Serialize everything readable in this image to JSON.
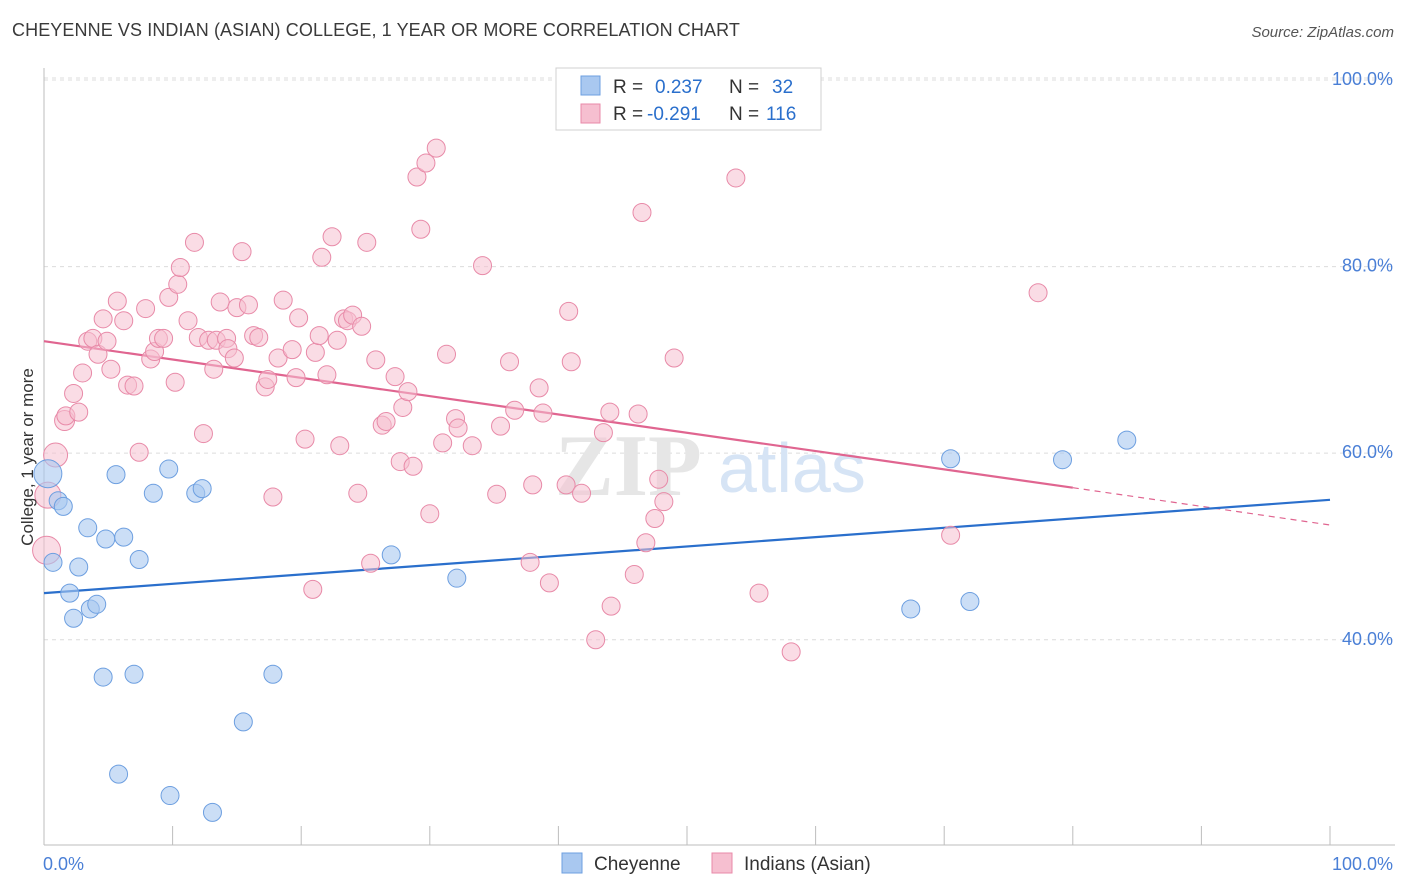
{
  "title": "CHEYENNE VS INDIAN (ASIAN) COLLEGE, 1 YEAR OR MORE CORRELATION CHART",
  "source": "Source: ZipAtlas.com",
  "watermark": {
    "zip": "ZIP",
    "atlas": "atlas"
  },
  "colors": {
    "cheyenne_fill": "#a9c8f0",
    "cheyenne_stroke": "#6d9fe0",
    "cheyenne_line": "#2a6fcc",
    "indian_fill": "#f6bfd0",
    "indian_stroke": "#e88aa8",
    "indian_line": "#e06590",
    "tick_text": "#4a7fd6",
    "value_text": "#2a6fcc"
  },
  "legend": {
    "row1": {
      "r_label": "R =",
      "r_value": "0.237",
      "n_label": "N =",
      "n_value": "32"
    },
    "row2": {
      "r_label": "R =",
      "r_value": "-0.291",
      "n_label": "N =",
      "n_value": "116"
    }
  },
  "chart_data": {
    "type": "scatter",
    "title": "CHEYENNE VS INDIAN (ASIAN) COLLEGE, 1 YEAR OR MORE CORRELATION CHART",
    "xlabel": "",
    "ylabel": "College, 1 year or more",
    "xlim": [
      0,
      100
    ],
    "ylim": [
      18,
      100
    ],
    "x_tick_labels": [
      "0.0%",
      "100.0%"
    ],
    "y_ticks": [
      40,
      60,
      80,
      100
    ],
    "y_tick_labels": [
      "40.0%",
      "60.0%",
      "80.0%",
      "100.0%"
    ],
    "grid": true,
    "legend_position": "top-center",
    "series": [
      {
        "name": "Cheyenne",
        "r": 0.237,
        "n": 32,
        "trend": {
          "x": [
            0,
            100
          ],
          "y": [
            45.0,
            55.0
          ]
        },
        "points": [
          [
            0.3,
            57.8,
            14
          ],
          [
            0.7,
            48.3,
            9
          ],
          [
            1.1,
            54.9,
            9
          ],
          [
            1.5,
            54.3,
            9
          ],
          [
            2.0,
            45.0,
            9
          ],
          [
            2.3,
            42.3,
            9
          ],
          [
            2.7,
            47.8,
            9
          ],
          [
            3.4,
            52.0,
            9
          ],
          [
            3.6,
            43.3,
            9
          ],
          [
            4.1,
            43.8,
            9
          ],
          [
            4.6,
            36.0,
            9
          ],
          [
            4.8,
            50.8,
            9
          ],
          [
            5.6,
            57.7,
            9
          ],
          [
            5.8,
            25.6,
            9
          ],
          [
            6.2,
            51.0,
            9
          ],
          [
            7.0,
            36.3,
            9
          ],
          [
            7.4,
            48.6,
            9
          ],
          [
            8.5,
            55.7,
            9
          ],
          [
            9.7,
            58.3,
            9
          ],
          [
            9.8,
            23.3,
            9
          ],
          [
            11.8,
            55.7,
            9
          ],
          [
            12.3,
            56.2,
            9
          ],
          [
            13.1,
            21.5,
            9
          ],
          [
            15.5,
            31.2,
            9
          ],
          [
            17.8,
            36.3,
            9
          ],
          [
            27.0,
            49.1,
            9
          ],
          [
            32.1,
            46.6,
            9
          ],
          [
            67.4,
            43.3,
            9
          ],
          [
            70.5,
            59.4,
            9
          ],
          [
            72.0,
            44.1,
            9
          ],
          [
            79.2,
            59.3,
            9
          ],
          [
            84.2,
            61.4,
            9
          ]
        ]
      },
      {
        "name": "Indians (Asian)",
        "r": -0.291,
        "n": 116,
        "trend": {
          "x": [
            0,
            80
          ],
          "y": [
            72.0,
            56.3
          ]
        },
        "trend_dashed": {
          "x": [
            80,
            100
          ],
          "y": [
            56.3,
            52.3
          ]
        },
        "points": [
          [
            0.2,
            49.6,
            14
          ],
          [
            0.3,
            55.5,
            13
          ],
          [
            0.9,
            59.8,
            12
          ],
          [
            1.6,
            63.5,
            10
          ],
          [
            1.7,
            64.0,
            9
          ],
          [
            2.3,
            66.4,
            9
          ],
          [
            2.7,
            64.4,
            9
          ],
          [
            3.0,
            68.6,
            9
          ],
          [
            3.4,
            72.0,
            9
          ],
          [
            3.8,
            72.3,
            9
          ],
          [
            4.2,
            70.6,
            9
          ],
          [
            4.6,
            74.4,
            9
          ],
          [
            4.9,
            72.0,
            9
          ],
          [
            5.2,
            69.0,
            9
          ],
          [
            5.7,
            76.3,
            9
          ],
          [
            6.2,
            74.2,
            9
          ],
          [
            6.5,
            67.3,
            9
          ],
          [
            7.0,
            67.2,
            9
          ],
          [
            7.4,
            60.1,
            9
          ],
          [
            7.9,
            75.5,
            9
          ],
          [
            8.3,
            70.1,
            9
          ],
          [
            8.6,
            70.9,
            9
          ],
          [
            8.9,
            72.3,
            9
          ],
          [
            9.3,
            72.3,
            9
          ],
          [
            9.7,
            76.7,
            9
          ],
          [
            10.2,
            67.6,
            9
          ],
          [
            10.4,
            78.1,
            9
          ],
          [
            10.6,
            79.9,
            9
          ],
          [
            11.2,
            74.2,
            9
          ],
          [
            11.7,
            82.6,
            9
          ],
          [
            12.0,
            72.4,
            9
          ],
          [
            12.4,
            62.1,
            9
          ],
          [
            12.8,
            72.1,
            9
          ],
          [
            13.2,
            69.0,
            9
          ],
          [
            13.4,
            72.1,
            9
          ],
          [
            13.7,
            76.2,
            9
          ],
          [
            14.2,
            72.3,
            9
          ],
          [
            14.3,
            71.2,
            9
          ],
          [
            14.8,
            70.2,
            9
          ],
          [
            15.0,
            75.6,
            9
          ],
          [
            15.4,
            81.6,
            9
          ],
          [
            15.9,
            75.9,
            9
          ],
          [
            16.3,
            72.6,
            9
          ],
          [
            16.7,
            72.4,
            9
          ],
          [
            17.2,
            67.1,
            9
          ],
          [
            17.4,
            67.9,
            9
          ],
          [
            17.8,
            55.3,
            9
          ],
          [
            18.2,
            70.2,
            9
          ],
          [
            18.6,
            76.4,
            9
          ],
          [
            19.3,
            71.1,
            9
          ],
          [
            19.6,
            68.1,
            9
          ],
          [
            19.8,
            74.5,
            9
          ],
          [
            20.3,
            61.5,
            9
          ],
          [
            20.9,
            45.4,
            9
          ],
          [
            21.1,
            70.8,
            9
          ],
          [
            21.4,
            72.6,
            9
          ],
          [
            21.6,
            81.0,
            9
          ],
          [
            22.0,
            68.4,
            9
          ],
          [
            22.4,
            83.2,
            9
          ],
          [
            22.8,
            72.1,
            9
          ],
          [
            23.0,
            60.8,
            9
          ],
          [
            23.3,
            74.4,
            9
          ],
          [
            23.6,
            74.2,
            9
          ],
          [
            24.0,
            74.8,
            9
          ],
          [
            24.4,
            55.7,
            9
          ],
          [
            24.7,
            73.6,
            9
          ],
          [
            25.1,
            82.6,
            9
          ],
          [
            25.4,
            48.2,
            9
          ],
          [
            25.8,
            70.0,
            9
          ],
          [
            26.3,
            63.0,
            9
          ],
          [
            26.6,
            63.4,
            9
          ],
          [
            27.3,
            68.2,
            9
          ],
          [
            27.7,
            59.1,
            9
          ],
          [
            27.9,
            64.9,
            9
          ],
          [
            28.3,
            66.6,
            9
          ],
          [
            28.7,
            58.6,
            9
          ],
          [
            29.0,
            89.6,
            9
          ],
          [
            29.3,
            84.0,
            9
          ],
          [
            29.7,
            91.1,
            9
          ],
          [
            30.0,
            53.5,
            9
          ],
          [
            30.5,
            92.7,
            9
          ],
          [
            31.0,
            61.1,
            9
          ],
          [
            31.3,
            70.6,
            9
          ],
          [
            32.0,
            63.7,
            9
          ],
          [
            32.2,
            62.7,
            9
          ],
          [
            33.3,
            60.8,
            9
          ],
          [
            34.1,
            80.1,
            9
          ],
          [
            35.2,
            55.6,
            9
          ],
          [
            35.5,
            62.9,
            9
          ],
          [
            36.2,
            69.8,
            9
          ],
          [
            36.6,
            64.6,
            9
          ],
          [
            37.8,
            48.3,
            9
          ],
          [
            38.0,
            56.6,
            9
          ],
          [
            38.5,
            67.0,
            9
          ],
          [
            38.8,
            64.3,
            9
          ],
          [
            39.3,
            46.1,
            9
          ],
          [
            40.6,
            56.6,
            9
          ],
          [
            40.8,
            75.2,
            9
          ],
          [
            41.0,
            69.8,
            9
          ],
          [
            41.8,
            55.7,
            9
          ],
          [
            42.9,
            40.0,
            9
          ],
          [
            43.5,
            62.2,
            9
          ],
          [
            44.0,
            64.4,
            9
          ],
          [
            44.1,
            43.6,
            9
          ],
          [
            45.9,
            47.0,
            9
          ],
          [
            46.2,
            64.2,
            9
          ],
          [
            46.5,
            85.8,
            9
          ],
          [
            46.8,
            50.4,
            9
          ],
          [
            47.5,
            53.0,
            9
          ],
          [
            47.8,
            57.2,
            9
          ],
          [
            48.2,
            54.8,
            9
          ],
          [
            49.0,
            70.2,
            9
          ],
          [
            53.8,
            89.5,
            9
          ],
          [
            55.6,
            45.0,
            9
          ],
          [
            58.1,
            38.7,
            9
          ],
          [
            70.5,
            51.2,
            9
          ],
          [
            77.3,
            77.2,
            9
          ]
        ]
      }
    ]
  }
}
